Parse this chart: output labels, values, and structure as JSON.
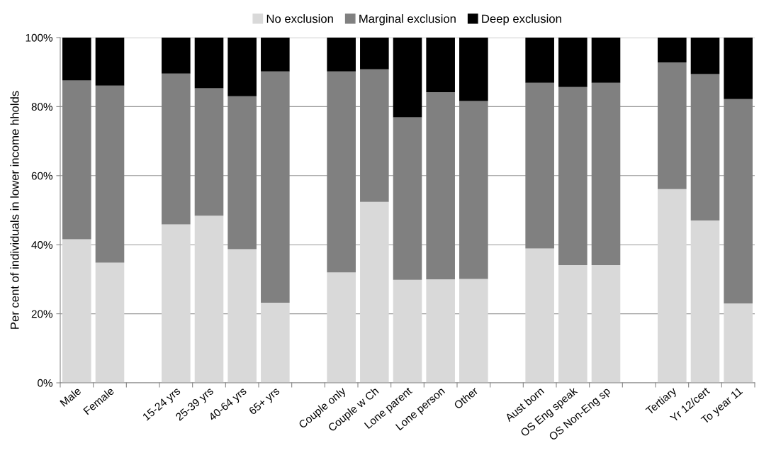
{
  "chart_data": {
    "type": "bar",
    "stacked": true,
    "ylabel": "Per cent of individuals in lower income hholds",
    "categories": [
      "Male",
      "Female",
      null,
      "15-24 yrs",
      "25-39 yrs",
      "40-64 yrs",
      "65+ yrs",
      null,
      "Couple only",
      "Couple w Ch",
      "Lone parent",
      "Lone person",
      "Other",
      null,
      "Aust born",
      "OS Eng speak",
      "OS Non-Eng sp",
      null,
      "Tertiary",
      "Yr 12/cert",
      "To year 11"
    ],
    "series": [
      {
        "name": "No exclusion",
        "color": "#d9d9d9",
        "values": [
          41.6,
          34.8,
          null,
          45.9,
          48.4,
          38.7,
          23.2,
          null,
          32.0,
          52.4,
          29.8,
          30.0,
          30.1,
          null,
          38.9,
          34.1,
          34.1,
          null,
          56.1,
          47.0,
          23.0
        ]
      },
      {
        "name": "Marginal exclusion",
        "color": "#808080",
        "values": [
          46.0,
          51.3,
          null,
          43.7,
          36.9,
          44.3,
          67.0,
          null,
          58.2,
          38.4,
          47.1,
          54.2,
          51.5,
          null,
          48.0,
          51.6,
          52.8,
          null,
          36.7,
          42.4,
          59.2
        ]
      },
      {
        "name": "Deep exclusion",
        "color": "#000000",
        "values": [
          12.4,
          13.9,
          null,
          10.4,
          14.7,
          17.0,
          9.8,
          null,
          9.8,
          9.2,
          23.1,
          15.8,
          18.4,
          null,
          13.1,
          14.3,
          13.1,
          null,
          7.2,
          10.6,
          17.8
        ]
      }
    ],
    "ylim": [
      0,
      100
    ],
    "yticks": [
      {
        "value": 0,
        "label": "0%"
      },
      {
        "value": 20,
        "label": "20%"
      },
      {
        "value": 40,
        "label": "40%"
      },
      {
        "value": 60,
        "label": "60%"
      },
      {
        "value": 80,
        "label": "80%"
      },
      {
        "value": 100,
        "label": "100%"
      }
    ],
    "grid": "y",
    "legend": "top"
  }
}
